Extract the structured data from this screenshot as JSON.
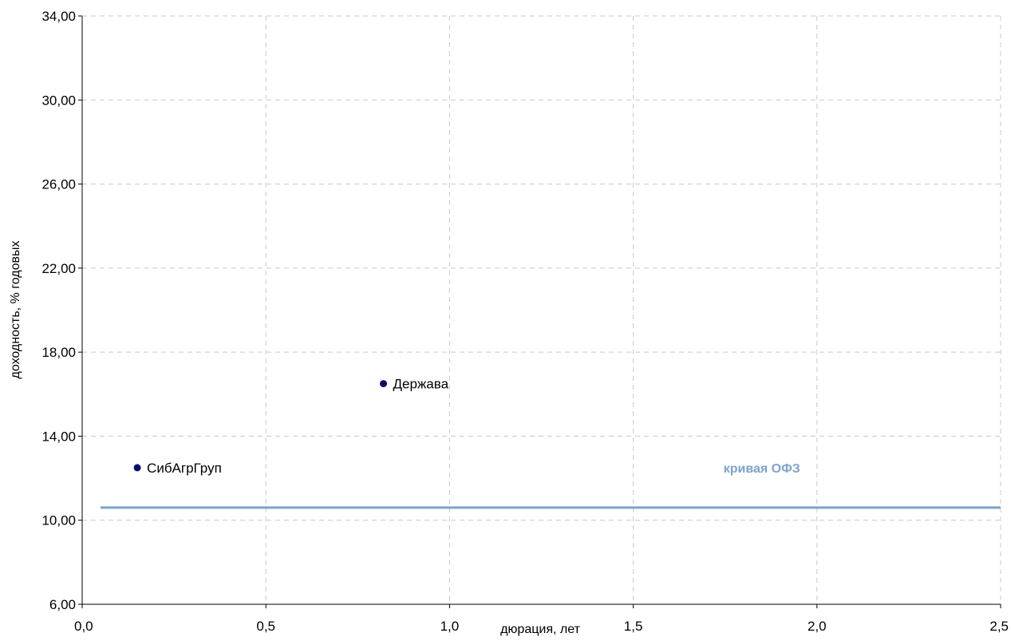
{
  "chart_data": {
    "type": "scatter",
    "title": "",
    "xlabel": "дюрация, лет",
    "ylabel": "доходность, % годовых",
    "xlim": [
      0,
      2.5
    ],
    "ylim": [
      6,
      34
    ],
    "x_ticks": [
      0,
      0.5,
      1,
      1.5,
      2,
      2.5
    ],
    "x_tick_labels": [
      "0,0",
      "0,5",
      "1,0",
      "1,5",
      "2,0",
      "2,5"
    ],
    "y_ticks": [
      6,
      10,
      14,
      18,
      22,
      26,
      30,
      34
    ],
    "y_tick_labels": [
      "6,00",
      "10,00",
      "14,00",
      "18,00",
      "22,00",
      "26,00",
      "30,00",
      "34,00"
    ],
    "grid": true,
    "points": [
      {
        "label": "СибАгрГруп",
        "x": 0.15,
        "y": 12.5
      },
      {
        "label": "Держава",
        "x": 0.82,
        "y": 16.5
      }
    ],
    "curve": {
      "name": "кривая ОФЗ",
      "x": [
        0.05,
        2.5
      ],
      "y": [
        10.6,
        10.6
      ]
    },
    "colors": {
      "points": "#0a0a6e",
      "curve": "#7ea2cc",
      "grid": "#c8c8c8",
      "axis": "#000000"
    }
  }
}
